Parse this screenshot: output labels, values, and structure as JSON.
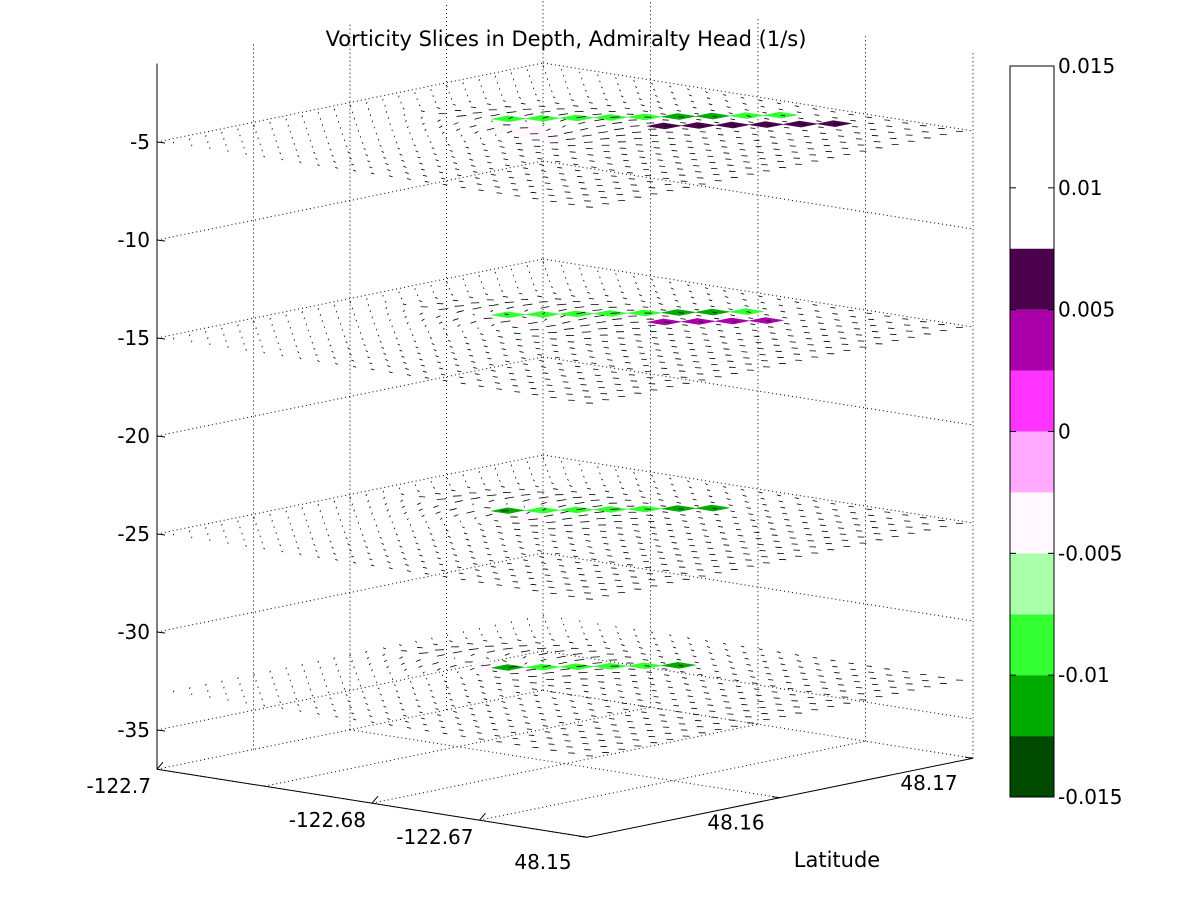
{
  "chart_data": {
    "type": "heatmap",
    "title": "Vorticity Slices in Depth, Admiralty Head (1/s)",
    "zlabel": "",
    "xlabel": "",
    "ylabel": "Latitude",
    "z_ticks": [
      -5,
      -10,
      -15,
      -20,
      -25,
      -30,
      -35
    ],
    "z_range": [
      -37,
      -1
    ],
    "x_ticks": [
      "-122.7",
      "-122.68",
      "-122.67"
    ],
    "x_tick_values": [
      -122.7,
      -122.68,
      -122.67
    ],
    "x_range": [
      -122.7,
      -122.66
    ],
    "y_ticks": [
      "48.15",
      "48.16",
      "48.17"
    ],
    "y_tick_values": [
      48.15,
      48.16,
      48.17
    ],
    "y_range": [
      48.15,
      48.17
    ],
    "slice_depths": [
      -5,
      -15,
      -25,
      -33
    ],
    "grid": true,
    "colorbar": {
      "levels": [
        -0.015,
        -0.0125,
        -0.01,
        -0.0075,
        -0.005,
        -0.0025,
        0,
        0.0025,
        0.005,
        0.0075,
        0.01,
        0.0125,
        0.015
      ],
      "colors": [
        "#004a00",
        "#00aa00",
        "#33ff33",
        "#aaffaa",
        "#fff8ff",
        "#ffaaff",
        "#ff33ff",
        "#aa00aa",
        "#4a004a"
      ],
      "ticks": [
        -0.015,
        -0.01,
        -0.005,
        0,
        0.005,
        0.01,
        0.015
      ],
      "tick_labels": [
        "-0.015",
        "-0.01",
        "-0.005",
        "0",
        "0.005",
        "0.01",
        "0.015"
      ],
      "range": [
        -0.015,
        0.015
      ]
    }
  }
}
